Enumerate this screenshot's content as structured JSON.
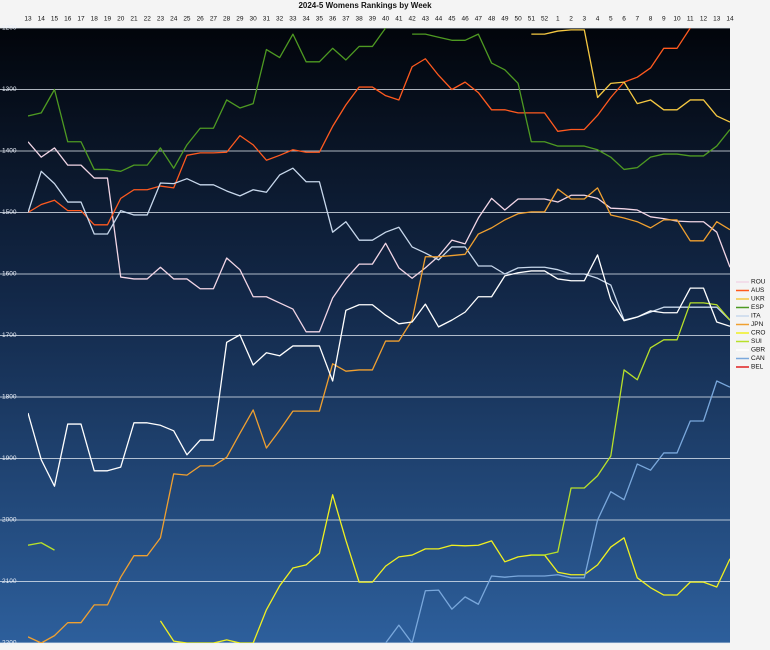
{
  "chart_data": {
    "type": "line",
    "title": "2024-5 Womens Rankings by Week",
    "categories": [
      "13",
      "14",
      "15",
      "16",
      "17",
      "18",
      "19",
      "20",
      "21",
      "22",
      "23",
      "24",
      "25",
      "26",
      "27",
      "28",
      "29",
      "30",
      "31",
      "32",
      "33",
      "34",
      "35",
      "36",
      "37",
      "38",
      "39",
      "40",
      "41",
      "42",
      "43",
      "44",
      "45",
      "46",
      "47",
      "48",
      "49",
      "50",
      "51",
      "52",
      "1",
      "2",
      "3",
      "4",
      "5",
      "6",
      "7",
      "8",
      "9",
      "10",
      "11",
      "12",
      "13",
      "14"
    ],
    "ylim": [
      1200,
      2200
    ],
    "y_inverted": true,
    "yticks": [
      1200,
      1300,
      1400,
      1500,
      1600,
      1700,
      1800,
      1900,
      2000,
      2100,
      2200
    ],
    "grid": true,
    "legend": "right",
    "series": [
      {
        "name": "ROU",
        "color": "#f2d6e6",
        "values": [
          1385,
          1410,
          1395,
          1423,
          1423,
          1444,
          1444,
          1605,
          1608,
          1608,
          1589,
          1608,
          1608,
          1624,
          1624,
          1574,
          1593,
          1637,
          1637,
          1647,
          1657,
          1694,
          1694,
          1639,
          1608,
          1584,
          1584,
          1550,
          1590,
          1607,
          1590,
          1571,
          1545,
          1551,
          1509,
          1477,
          1496,
          1478,
          1478,
          1478,
          1483,
          1472,
          1472,
          1477,
          1493,
          1494,
          1496,
          1507,
          1510,
          1514,
          1515,
          1515,
          1532,
          1589
        ]
      },
      {
        "name": "AUS",
        "color": "#ff5a1f",
        "values": [
          1500,
          1487,
          1480,
          1497,
          1497,
          1520,
          1520,
          1477,
          1463,
          1463,
          1457,
          1460,
          1407,
          1403,
          1403,
          1402,
          1375,
          1390,
          1415,
          1407,
          1398,
          1402,
          1402,
          1360,
          1325,
          1296,
          1296,
          1310,
          1317,
          1263,
          1250,
          1277,
          1300,
          1288,
          1305,
          1333,
          1333,
          1338,
          1338,
          1338,
          1368,
          1365,
          1365,
          1342,
          1313,
          1288,
          1280,
          1265,
          1233,
          1233,
          1200,
          null,
          null,
          null
        ]
      },
      {
        "name": "UKR",
        "color": "#f5c842",
        "values": [
          null,
          null,
          null,
          null,
          null,
          null,
          null,
          null,
          null,
          null,
          null,
          null,
          null,
          null,
          null,
          null,
          null,
          null,
          null,
          null,
          null,
          null,
          null,
          null,
          null,
          null,
          null,
          null,
          null,
          null,
          null,
          null,
          null,
          null,
          null,
          null,
          null,
          null,
          1210,
          1210,
          1205,
          1203,
          1203,
          1313,
          1290,
          1288,
          1323,
          1317,
          1333,
          1333,
          1317,
          1317,
          1343,
          1353
        ]
      },
      {
        "name": "ESP",
        "color": "#4e9a22",
        "values": [
          1343,
          1338,
          1300,
          1385,
          1385,
          1430,
          1430,
          1433,
          1423,
          1423,
          1395,
          1428,
          1390,
          1363,
          1363,
          1317,
          1330,
          1323,
          1235,
          1248,
          1210,
          1255,
          1255,
          1233,
          1252,
          1230,
          1230,
          1200,
          null,
          1210,
          1210,
          1215,
          1220,
          1220,
          1210,
          1257,
          1268,
          1290,
          1385,
          1385,
          1392,
          1392,
          1392,
          1398,
          1410,
          1430,
          1427,
          1410,
          1405,
          1405,
          1408,
          1408,
          1392,
          1365
        ]
      },
      {
        "name": "ITA",
        "color": "#c8d8ec",
        "values": [
          1500,
          1433,
          1453,
          1483,
          1483,
          1535,
          1535,
          1497,
          1504,
          1504,
          1452,
          1453,
          1445,
          1455,
          1455,
          1465,
          1473,
          1463,
          1467,
          1439,
          1428,
          1450,
          1450,
          1532,
          1515,
          1545,
          1545,
          1532,
          1524,
          1556,
          1566,
          1577,
          1556,
          1556,
          1587,
          1587,
          1600,
          1590,
          1589,
          1589,
          1593,
          1600,
          1600,
          1607,
          1618,
          1675,
          1670,
          1662,
          1654,
          1654,
          1654,
          1654,
          1654,
          1675
        ]
      },
      {
        "name": "JPN",
        "color": "#f0a030",
        "values": [
          2190,
          2200,
          2188,
          2167,
          2167,
          2138,
          2138,
          2093,
          2058,
          2058,
          2029,
          1925,
          1927,
          1912,
          1912,
          1898,
          1859,
          1821,
          1883,
          1854,
          1823,
          1823,
          1823,
          1746,
          1758,
          1756,
          1756,
          1709,
          1709,
          1675,
          1572,
          1572,
          1570,
          1568,
          1535,
          1525,
          1512,
          1502,
          1499,
          1499,
          1462,
          1478,
          1478,
          1460,
          1504,
          1509,
          1515,
          1525,
          1512,
          1512,
          1546,
          1546,
          1515,
          1528
        ]
      },
      {
        "name": "CRO",
        "color": "#f0f020",
        "values": [
          null,
          null,
          null,
          null,
          null,
          null,
          null,
          null,
          null,
          null,
          2164,
          2197,
          2200,
          2200,
          2200,
          2195,
          2200,
          2200,
          2146,
          2107,
          2078,
          2073,
          2054,
          1959,
          2033,
          2101,
          2101,
          2075,
          2060,
          2057,
          2047,
          2047,
          2041,
          2042,
          2041,
          2034,
          2068,
          2060,
          2057,
          2057,
          2085,
          2089,
          2089,
          2073,
          2044,
          2029,
          2094,
          2110,
          2122,
          2122,
          2101,
          2101,
          2109,
          2063
        ]
      },
      {
        "name": "SUI",
        "color": "#b8e02a",
        "values": [
          2041,
          2037,
          2049,
          null,
          null,
          null,
          null,
          null,
          null,
          null,
          null,
          null,
          null,
          null,
          null,
          null,
          null,
          null,
          null,
          null,
          null,
          null,
          null,
          null,
          null,
          null,
          null,
          null,
          null,
          null,
          null,
          null,
          null,
          null,
          null,
          null,
          null,
          null,
          2057,
          2057,
          2052,
          1948,
          1948,
          1928,
          1896,
          1756,
          1772,
          1720,
          1707,
          1707,
          1647,
          1647,
          1650,
          1675
        ]
      },
      {
        "name": "GBR",
        "color": "#ffffff",
        "values": [
          1826,
          1902,
          1945,
          1844,
          1844,
          1920,
          1920,
          1914,
          1842,
          1842,
          1846,
          1855,
          1894,
          1870,
          1870,
          1711,
          1699,
          1748,
          1728,
          1733,
          1717,
          1717,
          1717,
          1774,
          1659,
          1650,
          1650,
          1667,
          1681,
          1678,
          1649,
          1686,
          1675,
          1662,
          1637,
          1637,
          1603,
          1598,
          1595,
          1595,
          1608,
          1611,
          1611,
          1569,
          1642,
          1676,
          1670,
          1660,
          1663,
          1663,
          1623,
          1623,
          1678,
          1685
        ]
      },
      {
        "name": "CAN",
        "color": "#7aa8dc",
        "values": [
          null,
          null,
          null,
          null,
          null,
          null,
          null,
          null,
          null,
          null,
          null,
          null,
          null,
          null,
          null,
          null,
          null,
          null,
          null,
          null,
          null,
          null,
          null,
          null,
          null,
          null,
          null,
          2200,
          2171,
          2200,
          2115,
          2114,
          2145,
          2125,
          2137,
          2091,
          2093,
          2091,
          2091,
          2091,
          2089,
          2094,
          2094,
          2000,
          1954,
          1967,
          1909,
          1919,
          1891,
          1891,
          1839,
          1839,
          1774,
          1784
        ]
      },
      {
        "name": "BEL",
        "color": "#e02020",
        "values": [
          null,
          null,
          null,
          null,
          null,
          null,
          null,
          null,
          null,
          null,
          null,
          null,
          null,
          null,
          null,
          null,
          null,
          null,
          null,
          null,
          null,
          null,
          null,
          null,
          null,
          null,
          null,
          null,
          null,
          null,
          null,
          null,
          null,
          null,
          null,
          null,
          null,
          null,
          null,
          null,
          null,
          null,
          null,
          null,
          null,
          null,
          null,
          null,
          null,
          null,
          null,
          null,
          null,
          null
        ]
      }
    ]
  }
}
